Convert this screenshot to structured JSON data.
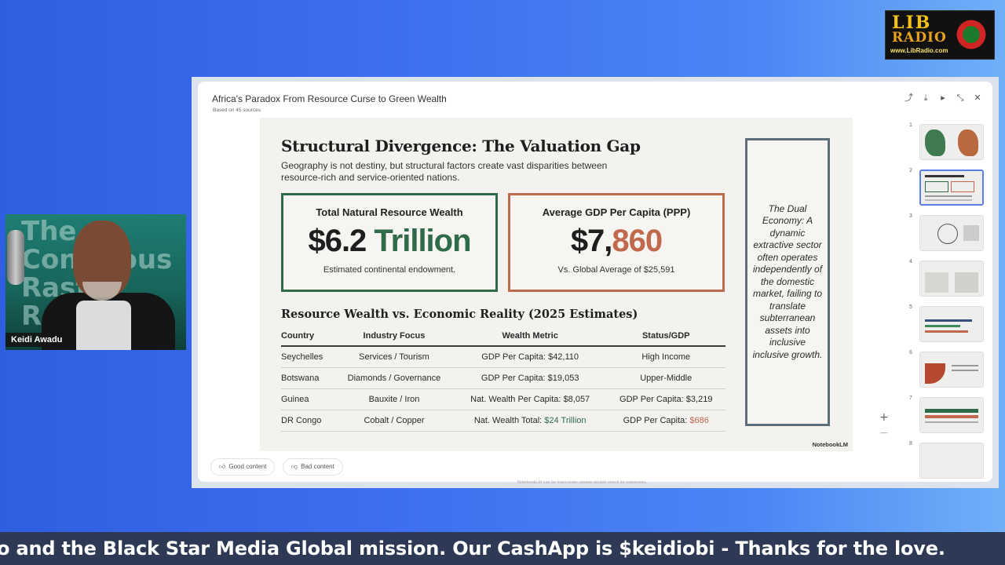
{
  "logo": {
    "line1": "LIB",
    "line2": "RADIO",
    "url": "www.LibRadio.com"
  },
  "webcam": {
    "participant_name": "Keidi Awadu",
    "background_text": "The Conscious Rasta Report"
  },
  "viewer": {
    "title": "Africa's Paradox From Resource Curse to Green Wealth",
    "subtitle": "Based on 45 sources",
    "toolbar_icons": [
      "share-icon",
      "download-icon",
      "play-icon",
      "collapse-icon",
      "close-icon"
    ]
  },
  "slide": {
    "title": "Structural Divergence: The Valuation Gap",
    "subtitle": "Geography is not destiny, but structural factors create vast disparities between resource-rich and service-oriented nations.",
    "box1": {
      "heading": "Total Natural Resource Wealth",
      "value_a": "$6.2",
      "value_b": " Trillion",
      "footnote": "Estimated continental endowment."
    },
    "box2": {
      "heading": "Average GDP Per Capita (PPP)",
      "value_a": "$7,",
      "value_b": "860",
      "footnote": "Vs. Global Average of $25,591"
    },
    "sidebar_text": "The Dual Economy: A dynamic extractive sector often operates independently of the domestic market, failing to translate subterranean assets into inclusive inclusive growth.",
    "table_title": "Resource Wealth vs. Economic Reality (2025 Estimates)",
    "table": {
      "headers": [
        "Country",
        "Industry Focus",
        "Wealth Metric",
        "Status/GDP"
      ],
      "rows": [
        [
          "Seychelles",
          "Services / Tourism",
          "GDP Per Capita: $42,110",
          "High Income"
        ],
        [
          "Botswana",
          "Diamonds / Governance",
          "GDP Per Capita: $19,053",
          "Upper-Middle"
        ],
        [
          "Guinea",
          "Bauxite / Iron",
          "Nat. Wealth Per Capita: $8,057",
          "GDP Per Capita: $3,219"
        ]
      ],
      "last_row": {
        "country": "DR Congo",
        "industry": "Cobalt / Copper",
        "metric_prefix": "Nat. Wealth Total: ",
        "metric_highlight": "$24 Trillion",
        "status_prefix": "GDP Per Capita: ",
        "status_highlight": "$686"
      }
    },
    "brand": "NotebookLM"
  },
  "zoom": {
    "plus": "+",
    "minus": "−"
  },
  "thumbnails": [
    "1",
    "2",
    "3",
    "4",
    "5",
    "6",
    "7",
    "8"
  ],
  "selected_thumbnail": "2",
  "feedback": {
    "good": "Good content",
    "bad": "Bad content"
  },
  "notice": "NotebookLM can be inaccurate; please double check its responses.",
  "ticker_text": "o and the Black Star Media Global mission. Our CashApp is $keidiobi - Thanks for the love."
}
